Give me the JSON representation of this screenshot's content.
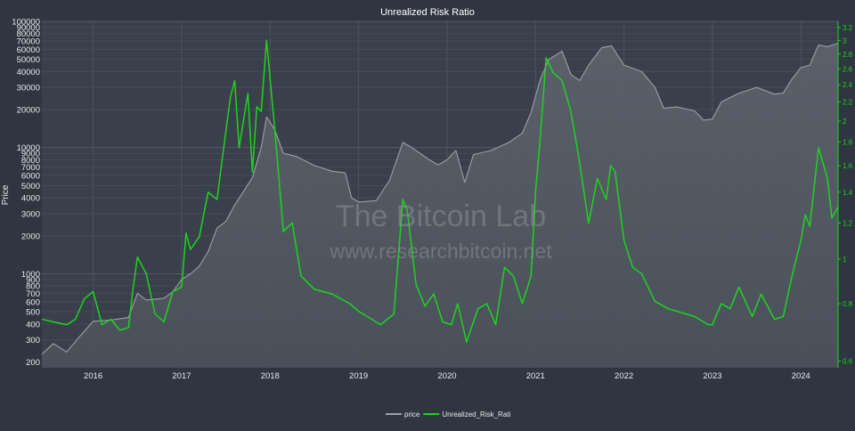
{
  "chart_data": {
    "type": "line",
    "title": "Unrealized Risk Ratio",
    "ylabel": "Price",
    "y2label": "",
    "yscale": "log",
    "y2scale": "log",
    "ylim": [
      180,
      100000
    ],
    "y2lim": [
      0.58,
      3.3
    ],
    "xlim": [
      2015.42,
      2024.42
    ],
    "grid": true,
    "legend_position": "bottom-center",
    "watermark": [
      "The Bitcoin Lab",
      "www.researchbitcoin.net"
    ],
    "x_ticks": [
      "2016",
      "2017",
      "2018",
      "2019",
      "2020",
      "2021",
      "2022",
      "2023",
      "2024"
    ],
    "x_tick_values": [
      2016,
      2017,
      2018,
      2019,
      2020,
      2021,
      2022,
      2023,
      2024
    ],
    "y_ticks": [
      "200",
      "300",
      "400",
      "500",
      "600",
      "700",
      "800",
      "900",
      "1000",
      "2000",
      "3000",
      "4000",
      "5000",
      "6000",
      "7000",
      "8000",
      "9000",
      "10000",
      "20000",
      "30000",
      "40000",
      "50000",
      "60000",
      "70000",
      "80000",
      "90000",
      "100000"
    ],
    "y_tick_values": [
      200,
      300,
      400,
      500,
      600,
      700,
      800,
      900,
      1000,
      2000,
      3000,
      4000,
      5000,
      6000,
      7000,
      8000,
      9000,
      10000,
      20000,
      30000,
      40000,
      50000,
      60000,
      70000,
      80000,
      90000,
      100000
    ],
    "y2_ticks": [
      "0.6",
      "0.8",
      "1",
      "1.2",
      "1.4",
      "1.6",
      "1.8",
      "2",
      "2.2",
      "2.4",
      "2.6",
      "2.8",
      "3",
      "3.2"
    ],
    "y2_tick_values": [
      0.6,
      0.8,
      1,
      1.2,
      1.4,
      1.6,
      1.8,
      2,
      2.2,
      2.4,
      2.6,
      2.8,
      3,
      3.2
    ],
    "series": [
      {
        "name": "price",
        "axis": "left",
        "color": "#9aa0a6",
        "fill": true,
        "x": [
          2015.42,
          2015.55,
          2015.7,
          2015.85,
          2016.0,
          2016.2,
          2016.4,
          2016.5,
          2016.6,
          2016.8,
          2016.9,
          2017.0,
          2017.1,
          2017.2,
          2017.3,
          2017.4,
          2017.5,
          2017.6,
          2017.7,
          2017.8,
          2017.9,
          2017.96,
          2018.05,
          2018.15,
          2018.3,
          2018.5,
          2018.7,
          2018.85,
          2018.92,
          2019.0,
          2019.2,
          2019.35,
          2019.5,
          2019.6,
          2019.8,
          2019.9,
          2020.0,
          2020.1,
          2020.2,
          2020.3,
          2020.5,
          2020.7,
          2020.85,
          2020.95,
          2021.05,
          2021.15,
          2021.3,
          2021.4,
          2021.5,
          2021.6,
          2021.75,
          2021.86,
          2022.0,
          2022.2,
          2022.35,
          2022.45,
          2022.6,
          2022.8,
          2022.9,
          2023.0,
          2023.1,
          2023.3,
          2023.5,
          2023.7,
          2023.8,
          2023.9,
          2024.0,
          2024.1,
          2024.2,
          2024.3,
          2024.42
        ],
        "values": [
          230,
          280,
          240,
          320,
          420,
          430,
          450,
          700,
          620,
          640,
          720,
          900,
          1000,
          1150,
          1500,
          2300,
          2600,
          3500,
          4500,
          5800,
          10000,
          17500,
          14000,
          9000,
          8500,
          7200,
          6500,
          6300,
          4000,
          3700,
          3800,
          5500,
          11000,
          10000,
          8000,
          7300,
          8000,
          9500,
          5300,
          8800,
          9500,
          11000,
          13000,
          19000,
          34000,
          50000,
          58000,
          38000,
          34000,
          45000,
          62000,
          64000,
          45000,
          40000,
          30000,
          20500,
          21000,
          19500,
          16500,
          16800,
          23000,
          27000,
          30000,
          26500,
          27000,
          35000,
          43000,
          45000,
          65000,
          63000,
          67000
        ]
      },
      {
        "name": "Unrealized_Risk_Rati",
        "axis": "right",
        "color": "#1ed31e",
        "fill": false,
        "x": [
          2015.42,
          2015.55,
          2015.7,
          2015.8,
          2015.9,
          2016.0,
          2016.1,
          2016.2,
          2016.3,
          2016.4,
          2016.45,
          2016.5,
          2016.6,
          2016.7,
          2016.8,
          2016.9,
          2017.0,
          2017.05,
          2017.1,
          2017.2,
          2017.3,
          2017.4,
          2017.45,
          2017.55,
          2017.6,
          2017.65,
          2017.75,
          2017.8,
          2017.85,
          2017.9,
          2017.96,
          2018.05,
          2018.15,
          2018.25,
          2018.35,
          2018.5,
          2018.7,
          2018.9,
          2019.0,
          2019.1,
          2019.25,
          2019.4,
          2019.5,
          2019.55,
          2019.65,
          2019.75,
          2019.85,
          2019.95,
          2020.05,
          2020.12,
          2020.22,
          2020.35,
          2020.45,
          2020.55,
          2020.65,
          2020.75,
          2020.85,
          2020.95,
          2021.0,
          2021.05,
          2021.12,
          2021.2,
          2021.3,
          2021.4,
          2021.5,
          2021.6,
          2021.7,
          2021.8,
          2021.85,
          2021.9,
          2022.0,
          2022.1,
          2022.2,
          2022.35,
          2022.5,
          2022.6,
          2022.8,
          2022.95,
          2023.0,
          2023.1,
          2023.2,
          2023.3,
          2023.45,
          2023.55,
          2023.7,
          2023.8,
          2023.9,
          2024.0,
          2024.05,
          2024.1,
          2024.2,
          2024.3,
          2024.35,
          2024.42
        ],
        "values": [
          0.74,
          0.73,
          0.72,
          0.74,
          0.82,
          0.85,
          0.72,
          0.74,
          0.7,
          0.71,
          0.86,
          1.01,
          0.93,
          0.76,
          0.73,
          0.85,
          0.87,
          1.14,
          1.05,
          1.12,
          1.4,
          1.35,
          1.6,
          2.25,
          2.45,
          1.75,
          2.3,
          1.55,
          2.15,
          2.1,
          3.0,
          1.95,
          1.15,
          1.2,
          0.92,
          0.86,
          0.84,
          0.8,
          0.77,
          0.75,
          0.72,
          0.76,
          1.35,
          1.28,
          0.88,
          0.79,
          0.84,
          0.73,
          0.72,
          0.8,
          0.66,
          0.78,
          0.8,
          0.72,
          0.96,
          0.92,
          0.8,
          0.92,
          1.4,
          1.8,
          2.75,
          2.55,
          2.45,
          2.1,
          1.62,
          1.2,
          1.5,
          1.35,
          1.6,
          1.55,
          1.1,
          0.96,
          0.93,
          0.81,
          0.78,
          0.77,
          0.75,
          0.72,
          0.72,
          0.8,
          0.78,
          0.87,
          0.75,
          0.84,
          0.74,
          0.75,
          0.92,
          1.1,
          1.25,
          1.18,
          1.75,
          1.5,
          1.23,
          1.3
        ]
      }
    ]
  }
}
